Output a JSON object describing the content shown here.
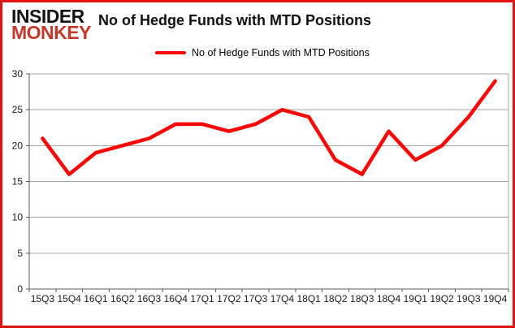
{
  "header": {
    "logo_line1": "INSIDER",
    "logo_line2": "MONKEY",
    "title": "No of Hedge Funds with MTD Positions"
  },
  "legend": {
    "label": "No of Hedge Funds with MTD Positions"
  },
  "chart_data": {
    "type": "line",
    "title": "No of Hedge Funds with MTD Positions",
    "categories": [
      "15Q3",
      "15Q4",
      "16Q1",
      "16Q2",
      "16Q3",
      "16Q4",
      "17Q1",
      "17Q2",
      "17Q3",
      "17Q4",
      "18Q1",
      "18Q2",
      "18Q3",
      "18Q4",
      "19Q1",
      "19Q2",
      "19Q3",
      "19Q4"
    ],
    "series": [
      {
        "name": "No of Hedge Funds with MTD Positions",
        "values": [
          21,
          16,
          19,
          20,
          21,
          23,
          23,
          22,
          23,
          25,
          24,
          18,
          16,
          22,
          18,
          20,
          24,
          29
        ]
      }
    ],
    "xlabel": "",
    "ylabel": "",
    "ylim": [
      0,
      30
    ],
    "y_ticks": [
      0,
      5,
      10,
      15,
      20,
      25,
      30
    ],
    "grid": "horizontal",
    "legend_position": "top",
    "line_color": "#fe0505"
  },
  "colors": {
    "accent_red": "#fe0505",
    "logo_red": "#c0392b",
    "frame_border": "#e01212",
    "gridline": "#a6a6a6",
    "axis": "#595959",
    "label_text": "#1a1a1a"
  }
}
